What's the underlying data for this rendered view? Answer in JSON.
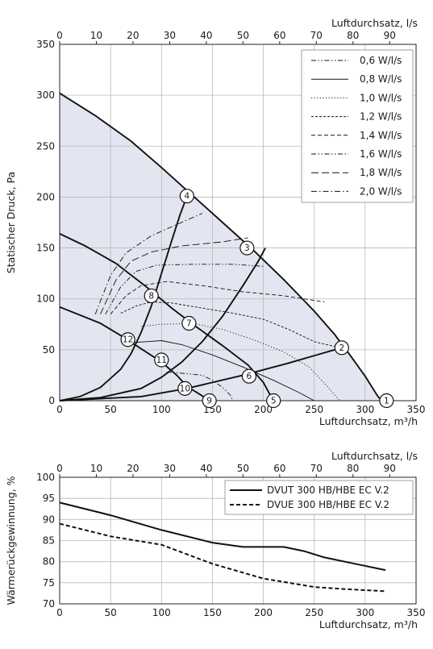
{
  "chart_data": [
    {
      "type": "line",
      "ylabel": "Statischer Druck, Pa",
      "xlabel": "Luftdurchsatz, m³/h",
      "x2label": "Luftdurchsatz, l/s",
      "xlim": [
        0,
        350
      ],
      "ylim": [
        0,
        350
      ],
      "x2lim": [
        0,
        97.2
      ],
      "x_ticks": [
        "0",
        "50",
        "100",
        "150",
        "200",
        "250",
        "300",
        "350"
      ],
      "y_ticks": [
        "0",
        "50",
        "100",
        "150",
        "200",
        "250",
        "300",
        "350"
      ],
      "x2_ticks": [
        "0",
        "10",
        "20",
        "30",
        "40",
        "50",
        "60",
        "70",
        "80",
        "90"
      ],
      "grid": true,
      "legend_position": "top-right",
      "legend": [
        {
          "label": "0,6 W/l/s",
          "dash": "dash-dot-dot"
        },
        {
          "label": "0,8 W/l/s",
          "dash": "solid"
        },
        {
          "label": "1,0 W/l/s",
          "dash": "dotted"
        },
        {
          "label": "1,2 W/l/s",
          "dash": "short-dash"
        },
        {
          "label": "1,4 W/l/s",
          "dash": "dashed"
        },
        {
          "label": "1,6 W/l/s",
          "dash": "dash-dot-dot"
        },
        {
          "label": "1,8 W/l/s",
          "dash": "long-dash"
        },
        {
          "label": "2,0 W/l/s",
          "dash": "dash-dot"
        }
      ],
      "shaded_area": [
        [
          0,
          302
        ],
        [
          35,
          280
        ],
        [
          70,
          255
        ],
        [
          100,
          229
        ],
        [
          130,
          202
        ],
        [
          160,
          175
        ],
        [
          190,
          148
        ],
        [
          220,
          119
        ],
        [
          250,
          88
        ],
        [
          270,
          65
        ],
        [
          285,
          45
        ],
        [
          300,
          24
        ],
        [
          312,
          5
        ],
        [
          316,
          0
        ],
        [
          0,
          0
        ]
      ],
      "fan_curves": [
        {
          "points": [
            [
              0,
              302
            ],
            [
              35,
              280
            ],
            [
              70,
              255
            ],
            [
              100,
              229
            ],
            [
              130,
              202
            ],
            [
              160,
              175
            ],
            [
              190,
              148
            ],
            [
              220,
              119
            ],
            [
              250,
              88
            ],
            [
              270,
              65
            ],
            [
              285,
              45
            ],
            [
              300,
              24
            ],
            [
              312,
              5
            ],
            [
              316,
              0
            ]
          ]
        },
        {
          "points": [
            [
              0,
              164
            ],
            [
              25,
              152
            ],
            [
              55,
              135
            ],
            [
              85,
              112
            ],
            [
              110,
              91
            ],
            [
              135,
              72
            ],
            [
              160,
              54
            ],
            [
              185,
              35
            ],
            [
              200,
              18
            ],
            [
              207,
              5
            ],
            [
              210,
              0
            ]
          ]
        },
        {
          "points": [
            [
              0,
              92
            ],
            [
              20,
              84
            ],
            [
              40,
              76
            ],
            [
              60,
              64
            ],
            [
              80,
              51
            ],
            [
              100,
              38
            ],
            [
              115,
              25
            ],
            [
              125,
              14
            ],
            [
              138,
              6
            ],
            [
              147,
              0
            ]
          ]
        }
      ],
      "system_curves": [
        {
          "points": [
            [
              0,
              0
            ],
            [
              20,
              4
            ],
            [
              40,
              13
            ],
            [
              60,
              31
            ],
            [
              70,
              46
            ],
            [
              80,
              67
            ],
            [
              90,
              93
            ],
            [
              100,
              125
            ],
            [
              110,
              157
            ],
            [
              118,
              182
            ],
            [
              125,
              201
            ]
          ]
        },
        {
          "points": [
            [
              0,
              0
            ],
            [
              40,
              3
            ],
            [
              80,
              12
            ],
            [
              100,
              23
            ],
            [
              120,
              38
            ],
            [
              140,
              58
            ],
            [
              160,
              83
            ],
            [
              180,
              113
            ],
            [
              195,
              137
            ],
            [
              202,
              150
            ]
          ]
        },
        {
          "points": [
            [
              0,
              0
            ],
            [
              80,
              4
            ],
            [
              125,
              12
            ],
            [
              180,
              25
            ],
            [
              225,
              37
            ],
            [
              277,
              52
            ]
          ]
        }
      ],
      "power_curves": [
        {
          "name": "0,6 W/l/s",
          "points": [
            [
              105,
              28
            ],
            [
              120,
              27
            ],
            [
              140,
              25
            ],
            [
              150,
              20
            ],
            [
              160,
              13
            ],
            [
              168,
              5
            ],
            [
              170,
              0
            ]
          ]
        },
        {
          "name": "0,8 W/l/s",
          "points": [
            [
              70,
              57
            ],
            [
              85,
              58
            ],
            [
              100,
              59
            ],
            [
              120,
              55
            ],
            [
              150,
              45
            ],
            [
              180,
              33
            ],
            [
              210,
              20
            ],
            [
              235,
              8
            ],
            [
              250,
              0
            ]
          ]
        },
        {
          "name": "1,0 W/l/s",
          "points": [
            [
              80,
              73
            ],
            [
              100,
              75
            ],
            [
              130,
              76
            ],
            [
              160,
              70
            ],
            [
              190,
              60
            ],
            [
              220,
              48
            ],
            [
              245,
              33
            ],
            [
              262,
              15
            ],
            [
              275,
              0
            ]
          ]
        },
        {
          "name": "1,2 W/l/s",
          "points": [
            [
              60,
              86
            ],
            [
              75,
              93
            ],
            [
              90,
              97
            ],
            [
              110,
              96
            ],
            [
              140,
              91
            ],
            [
              170,
              86
            ],
            [
              200,
              80
            ],
            [
              225,
              70
            ],
            [
              250,
              58
            ],
            [
              275,
              52
            ]
          ]
        },
        {
          "name": "1,4 W/l/s",
          "points": [
            [
              50,
              85
            ],
            [
              65,
              103
            ],
            [
              80,
              113
            ],
            [
              105,
              117
            ],
            [
              140,
              113
            ],
            [
              180,
              107
            ],
            [
              220,
              103
            ],
            [
              260,
              97
            ]
          ]
        },
        {
          "name": "1,6 W/l/s",
          "points": [
            [
              45,
              85
            ],
            [
              60,
              112
            ],
            [
              75,
              127
            ],
            [
              95,
              133
            ],
            [
              130,
              134
            ],
            [
              170,
              134
            ],
            [
              200,
              132
            ]
          ]
        },
        {
          "name": "1,8 W/l/s",
          "points": [
            [
              40,
              85
            ],
            [
              55,
              118
            ],
            [
              70,
              137
            ],
            [
              90,
              146
            ],
            [
              120,
              152
            ],
            [
              160,
              156
            ],
            [
              185,
              160
            ]
          ]
        },
        {
          "name": "2,0 W/l/s",
          "points": [
            [
              35,
              85
            ],
            [
              50,
              123
            ],
            [
              65,
              145
            ],
            [
              90,
              162
            ],
            [
              115,
              173
            ],
            [
              140,
              184
            ]
          ]
        }
      ],
      "operating_points": [
        {
          "label": "1",
          "x": 321,
          "y": 0
        },
        {
          "label": "2",
          "x": 277,
          "y": 52
        },
        {
          "label": "3",
          "x": 184,
          "y": 150
        },
        {
          "label": "4",
          "x": 125,
          "y": 201
        },
        {
          "label": "5",
          "x": 210,
          "y": 0
        },
        {
          "label": "6",
          "x": 186,
          "y": 24
        },
        {
          "label": "7",
          "x": 127,
          "y": 76
        },
        {
          "label": "8",
          "x": 90,
          "y": 103
        },
        {
          "label": "9",
          "x": 147,
          "y": 0
        },
        {
          "label": "10",
          "x": 123,
          "y": 12
        },
        {
          "label": "11",
          "x": 100,
          "y": 40
        },
        {
          "label": "12",
          "x": 67,
          "y": 60
        }
      ]
    },
    {
      "type": "line",
      "ylabel": "Wärmerückgewinnung, %",
      "xlabel": "Luftdurchsatz, m³/h",
      "x2label": "Luftdurchsatz, l/s",
      "xlim": [
        0,
        350
      ],
      "ylim": [
        70,
        100
      ],
      "x2lim": [
        0,
        97.2
      ],
      "x_ticks": [
        "0",
        "50",
        "100",
        "150",
        "200",
        "250",
        "300",
        "350"
      ],
      "y_ticks": [
        "70",
        "75",
        "80",
        "85",
        "90",
        "95",
        "100"
      ],
      "x2_ticks": [
        "0",
        "10",
        "20",
        "30",
        "40",
        "50",
        "60",
        "70",
        "80",
        "90"
      ],
      "grid": true,
      "legend_position": "top-right",
      "series": [
        {
          "name": "DVUT 300 HB/HBE EC V.2",
          "dash": "solid",
          "points": [
            [
              0,
              94
            ],
            [
              50,
              91
            ],
            [
              100,
              87.5
            ],
            [
              150,
              84.5
            ],
            [
              180,
              83.5
            ],
            [
              220,
              83.5
            ],
            [
              240,
              82.5
            ],
            [
              260,
              81
            ],
            [
              290,
              79.5
            ],
            [
              320,
              78
            ]
          ]
        },
        {
          "name": "DVUE 300 HB/HBE EC V.2",
          "dash": "dashed",
          "points": [
            [
              0,
              89
            ],
            [
              50,
              86
            ],
            [
              100,
              84
            ],
            [
              150,
              79.5
            ],
            [
              200,
              76
            ],
            [
              250,
              74
            ],
            [
              280,
              73.5
            ],
            [
              320,
              73
            ]
          ]
        }
      ]
    }
  ]
}
